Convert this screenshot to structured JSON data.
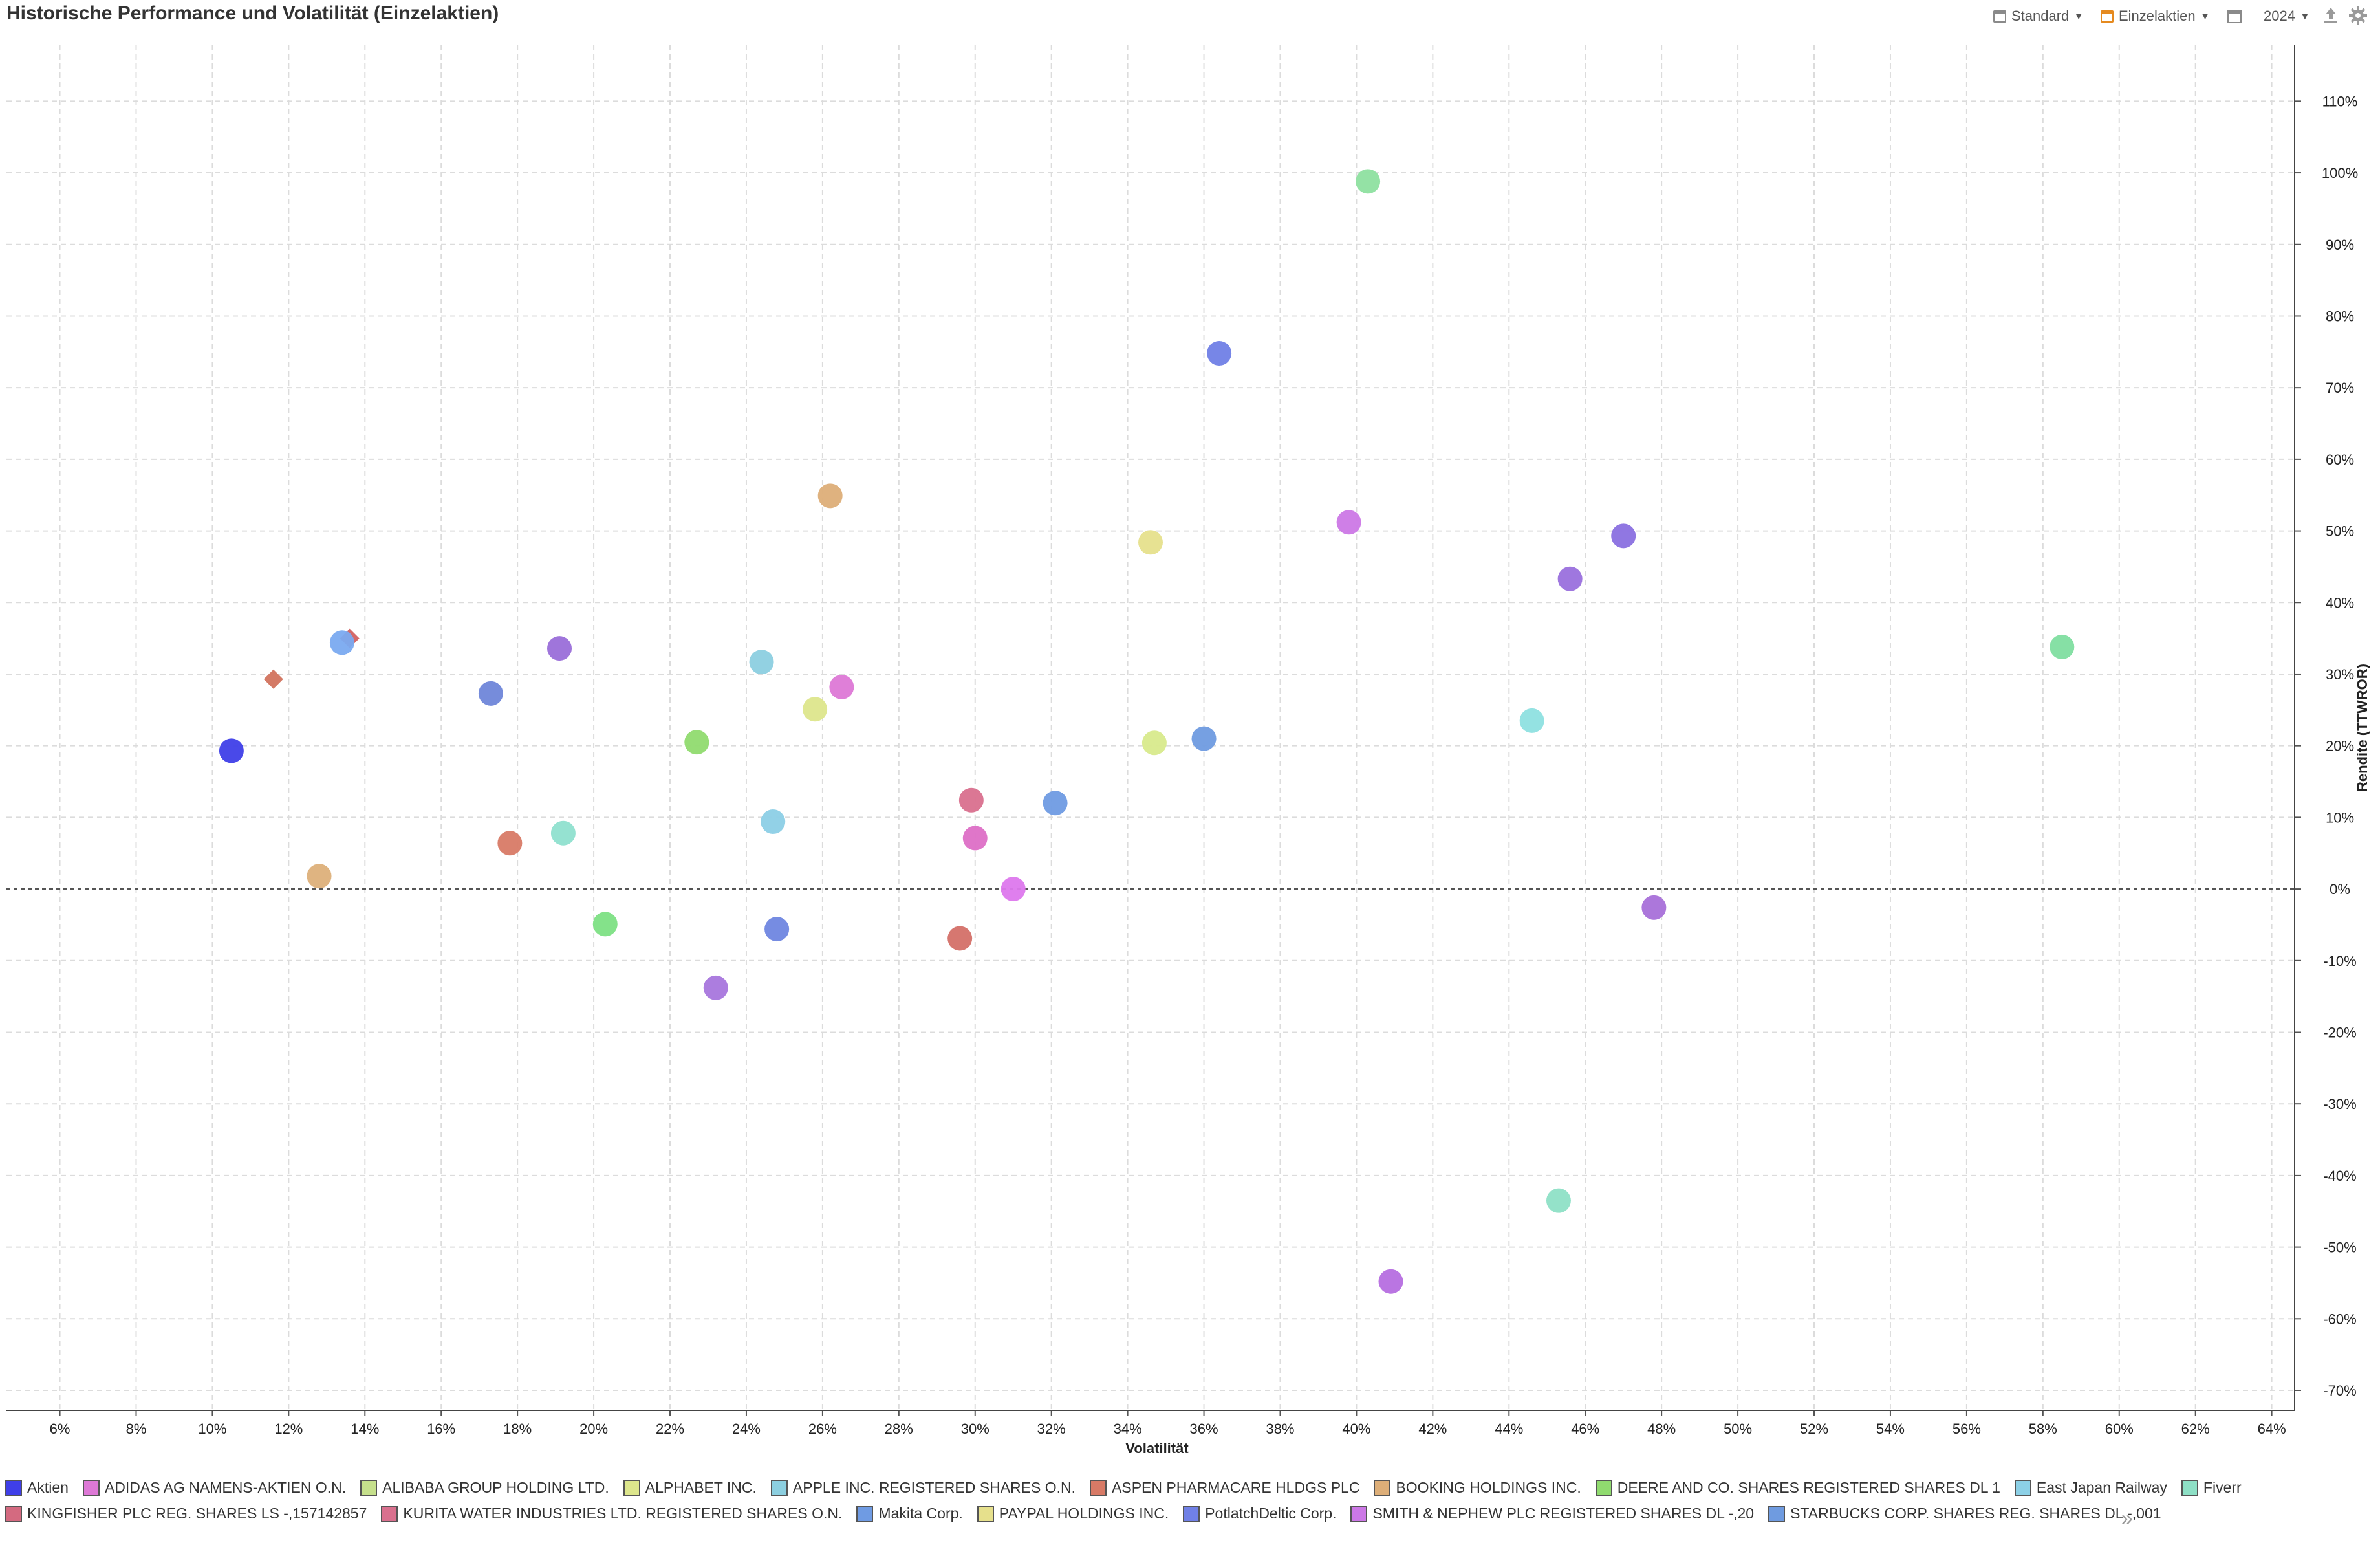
{
  "title": "Historische Performance und Volatilität (Einzelaktien)",
  "toolbar": {
    "standard_label": "Standard",
    "einzelaktien_label": "Einzelaktien",
    "year_label": "2024"
  },
  "chart_data": {
    "type": "scatter",
    "xlabel": "Volatilität",
    "ylabel": "Rendite (TTWROR)",
    "xlim": [
      4.6,
      64.6
    ],
    "ylim": [
      -72.8,
      117.8
    ],
    "x_ticks": [
      6,
      8,
      10,
      12,
      14,
      16,
      18,
      20,
      22,
      24,
      26,
      28,
      30,
      32,
      34,
      36,
      38,
      40,
      42,
      44,
      46,
      48,
      50,
      52,
      54,
      56,
      58,
      60,
      62,
      64
    ],
    "y_ticks": [
      -70,
      -60,
      -50,
      -40,
      -30,
      -20,
      -10,
      0,
      10,
      20,
      30,
      40,
      50,
      60,
      70,
      80,
      90,
      100,
      110
    ],
    "x_unit": "%",
    "y_unit": "%",
    "grid": true,
    "zero_line": true,
    "legend_position": "bottom",
    "points": [
      {
        "x": 10.5,
        "y": 19.3,
        "color": "#3f3fe8",
        "shape": "circle"
      },
      {
        "x": 11.6,
        "y": 29.3,
        "color": "#d47a66",
        "shape": "diamond"
      },
      {
        "x": 13.6,
        "y": 35.0,
        "color": "#d46a6a",
        "shape": "diamond"
      },
      {
        "x": 13.4,
        "y": 34.4,
        "color": "#7aaaf0",
        "shape": "circle"
      },
      {
        "x": 12.8,
        "y": 1.8,
        "color": "#ddb07a",
        "shape": "circle"
      },
      {
        "x": 17.3,
        "y": 27.3,
        "color": "#6f86d9",
        "shape": "circle"
      },
      {
        "x": 17.8,
        "y": 6.4,
        "color": "#d87a66",
        "shape": "circle"
      },
      {
        "x": 19.1,
        "y": 33.6,
        "color": "#9a6ed9",
        "shape": "circle"
      },
      {
        "x": 19.2,
        "y": 7.8,
        "color": "#8fe0cf",
        "shape": "circle"
      },
      {
        "x": 20.3,
        "y": -4.9,
        "color": "#7de084",
        "shape": "circle"
      },
      {
        "x": 22.7,
        "y": 20.5,
        "color": "#90db6f",
        "shape": "circle"
      },
      {
        "x": 23.2,
        "y": -13.8,
        "color": "#a876dd",
        "shape": "circle"
      },
      {
        "x": 24.4,
        "y": 31.7,
        "color": "#8ccfe0",
        "shape": "circle"
      },
      {
        "x": 24.7,
        "y": 9.4,
        "color": "#8ccfe6",
        "shape": "circle"
      },
      {
        "x": 24.8,
        "y": -5.6,
        "color": "#6f86e0",
        "shape": "circle"
      },
      {
        "x": 25.8,
        "y": 25.1,
        "color": "#dde68c",
        "shape": "circle"
      },
      {
        "x": 26.2,
        "y": 54.9,
        "color": "#ddae78",
        "shape": "circle"
      },
      {
        "x": 26.5,
        "y": 28.2,
        "color": "#dd78d6",
        "shape": "circle"
      },
      {
        "x": 29.6,
        "y": -6.9,
        "color": "#d47068",
        "shape": "circle"
      },
      {
        "x": 29.9,
        "y": 12.4,
        "color": "#d9708e",
        "shape": "circle"
      },
      {
        "x": 30.0,
        "y": 7.1,
        "color": "#dd6fc6",
        "shape": "circle"
      },
      {
        "x": 31.0,
        "y": 0.0,
        "color": "#dd78ed",
        "shape": "circle"
      },
      {
        "x": 32.1,
        "y": 12.0,
        "color": "#6f9be3",
        "shape": "circle"
      },
      {
        "x": 34.6,
        "y": 48.4,
        "color": "#e6e08c",
        "shape": "circle"
      },
      {
        "x": 34.7,
        "y": 20.4,
        "color": "#d8ea8c",
        "shape": "circle"
      },
      {
        "x": 36.0,
        "y": 21.0,
        "color": "#6f9be0",
        "shape": "circle"
      },
      {
        "x": 36.4,
        "y": 74.8,
        "color": "#7080e6",
        "shape": "circle"
      },
      {
        "x": 39.8,
        "y": 51.2,
        "color": "#cc78e6",
        "shape": "circle"
      },
      {
        "x": 40.3,
        "y": 98.8,
        "color": "#8ee0a0",
        "shape": "circle"
      },
      {
        "x": 40.9,
        "y": -54.8,
        "color": "#b66ee0",
        "shape": "circle"
      },
      {
        "x": 44.6,
        "y": 23.5,
        "color": "#8ee0e0",
        "shape": "circle"
      },
      {
        "x": 45.3,
        "y": -43.5,
        "color": "#8ee0c6",
        "shape": "circle"
      },
      {
        "x": 45.6,
        "y": 43.3,
        "color": "#9a70dd",
        "shape": "circle"
      },
      {
        "x": 47.0,
        "y": 49.3,
        "color": "#8a70e0",
        "shape": "circle"
      },
      {
        "x": 47.8,
        "y": -2.6,
        "color": "#a870d9",
        "shape": "circle"
      },
      {
        "x": 58.5,
        "y": 33.8,
        "color": "#80dea0",
        "shape": "circle"
      }
    ]
  },
  "legend": {
    "row1": [
      {
        "label": "Aktien",
        "color": "#3f3fe8"
      },
      {
        "label": "ADIDAS AG NAMENS-AKTIEN O.N.",
        "color": "#dd78d6"
      },
      {
        "label": "ALIBABA GROUP HOLDING LTD.",
        "color": "#c6e08c"
      },
      {
        "label": "ALPHABET INC.",
        "color": "#dde68c"
      },
      {
        "label": "APPLE INC. REGISTERED SHARES O.N.",
        "color": "#8ccfe0"
      },
      {
        "label": "ASPEN PHARMACARE HLDGS PLC",
        "color": "#d87a66"
      },
      {
        "label": "BOOKING HOLDINGS INC.",
        "color": "#ddae78"
      },
      {
        "label": "DEERE AND CO. SHARES REGISTERED SHARES DL 1",
        "color": "#90db6f"
      },
      {
        "label": "East Japan Railway",
        "color": "#8cd0e6"
      },
      {
        "label": "Fiverr",
        "color": "#8ee0c6"
      }
    ],
    "row2": [
      {
        "label": "KINGFISHER PLC REG. SHARES LS -,157142857",
        "color": "#d46a80"
      },
      {
        "label": "KURITA WATER INDUSTRIES LTD. REGISTERED SHARES O.N.",
        "color": "#d9708e"
      },
      {
        "label": "Makita Corp.",
        "color": "#6f9be3"
      },
      {
        "label": "PAYPAL HOLDINGS INC.",
        "color": "#e6e08c"
      },
      {
        "label": "PotlatchDeltic Corp.",
        "color": "#7080e6"
      },
      {
        "label": "SMITH & NEPHEW PLC REGISTERED SHARES DL -,20",
        "color": "#cc78e6"
      },
      {
        "label": "STARBUCKS CORP. SHARES REG. SHARES DL -,001",
        "color": "#6f9be0"
      }
    ]
  }
}
